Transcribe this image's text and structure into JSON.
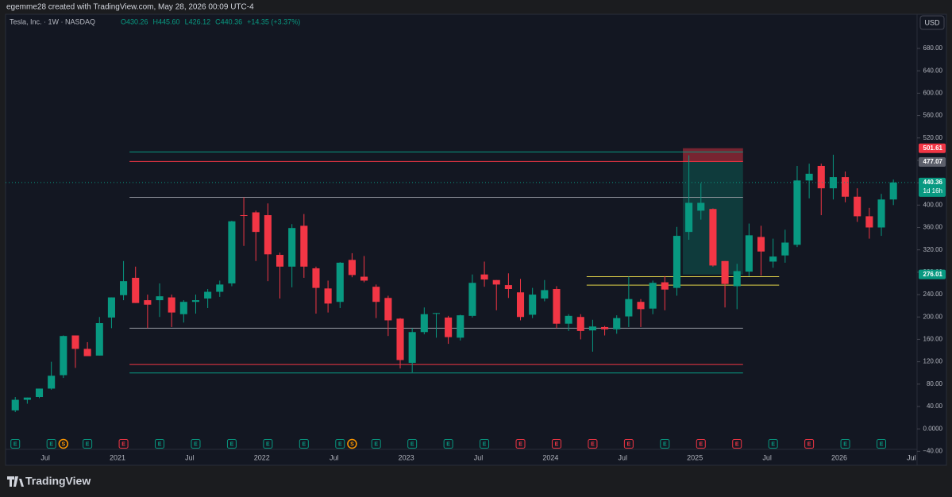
{
  "header": {
    "attribution": "egemme28 created with TradingView.com, May 28, 2026 00:09 UTC-4"
  },
  "legend": {
    "symbol": "Tesla, Inc. · 1W · NASDAQ",
    "ohlc": [
      "O430.26",
      "H445.60",
      "L426.12",
      "C440.36",
      "+14.35 (+3.37%)"
    ]
  },
  "currency": "USD",
  "logo": "TradingView",
  "chart_data": {
    "type": "candlestick",
    "x": [
      "2020-04",
      "2020-05",
      "2020-06",
      "2020-07",
      "2020-08",
      "2020-09",
      "2020-10",
      "2020-11",
      "2020-12",
      "2021-01",
      "2021-02",
      "2021-03",
      "2021-04",
      "2021-05",
      "2021-06",
      "2021-07",
      "2021-08",
      "2021-09",
      "2021-10",
      "2021-11",
      "2021-12",
      "2022-01",
      "2022-02",
      "2022-03",
      "2022-04",
      "2022-05",
      "2022-06",
      "2022-07",
      "2022-08",
      "2022-09",
      "2022-10",
      "2022-11",
      "2022-12",
      "2023-01",
      "2023-02",
      "2023-03",
      "2023-04",
      "2023-05",
      "2023-06",
      "2023-07",
      "2023-08",
      "2023-09",
      "2023-10",
      "2023-11",
      "2023-12",
      "2024-01",
      "2024-02",
      "2024-03",
      "2024-04",
      "2024-05",
      "2024-06",
      "2024-07",
      "2024-08",
      "2024-09",
      "2024-10",
      "2024-11",
      "2024-12",
      "2025-01",
      "2025-02",
      "2025-03",
      "2025-04",
      "2025-05",
      "2025-06",
      "2025-07",
      "2025-08",
      "2025-09",
      "2025-10",
      "2025-11",
      "2025-12",
      "2026-01",
      "2026-02",
      "2026-03",
      "2026-04",
      "2026-05"
    ],
    "open": [
      33,
      52,
      57,
      72,
      96,
      167,
      143,
      131,
      199,
      239,
      270,
      230,
      230,
      235,
      205,
      227,
      233,
      245,
      260,
      382,
      387,
      382,
      311,
      290,
      363,
      287,
      251,
      227,
      302,
      272,
      254,
      234,
      197,
      118,
      173,
      206,
      199,
      163,
      202,
      276,
      266,
      257,
      244,
      204,
      233,
      250,
      188,
      200,
      176,
      182,
      178,
      201,
      227,
      215,
      262,
      252,
      352,
      390,
      393,
      300,
      255,
      281,
      343,
      299,
      310,
      329,
      444,
      470,
      430,
      450,
      415,
      380,
      360,
      410
    ],
    "high": [
      57,
      56,
      72,
      120,
      167,
      167,
      155,
      200,
      235,
      300,
      290,
      240,
      260,
      240,
      230,
      240,
      250,
      265,
      372,
      414,
      390,
      403,
      315,
      366,
      384,
      290,
      265,
      298,
      314,
      309,
      258,
      238,
      198,
      180,
      217,
      207,
      202,
      204,
      276,
      299,
      266,
      278,
      268,
      252,
      266,
      255,
      205,
      205,
      195,
      184,
      203,
      272,
      232,
      265,
      273,
      361,
      489,
      439,
      394,
      300,
      295,
      367,
      363,
      340,
      356,
      470,
      474,
      474,
      490,
      460,
      430,
      395,
      420,
      445.6
    ],
    "low": [
      30,
      45,
      55,
      70,
      91,
      109,
      135,
      131,
      180,
      230,
      225,
      180,
      200,
      182,
      190,
      206,
      216,
      236,
      255,
      327,
      300,
      264,
      233,
      253,
      270,
      206,
      208,
      216,
      271,
      262,
      198,
      166,
      108,
      101,
      169,
      163,
      152,
      158,
      199,
      254,
      212,
      234,
      194,
      198,
      228,
      180,
      175,
      160,
      138,
      167,
      170,
      182,
      182,
      205,
      212,
      238,
      338,
      374,
      290,
      217,
      214,
      273,
      274,
      288,
      297,
      325,
      412,
      382,
      410,
      405,
      370,
      340,
      345,
      400
    ],
    "close": [
      52,
      56,
      72,
      95,
      166,
      143,
      130,
      189,
      235,
      264,
      225,
      222,
      237,
      208,
      227,
      230,
      245,
      258,
      371,
      381,
      352,
      312,
      290,
      359,
      290,
      252,
      224,
      297,
      275,
      265,
      227,
      194,
      123,
      173,
      205,
      207,
      164,
      203,
      261,
      267,
      258,
      250,
      200,
      240,
      248,
      188,
      202,
      175,
      183,
      178,
      198,
      232,
      214,
      261,
      249,
      345,
      404,
      404,
      292,
      259,
      282,
      346,
      317,
      308,
      333,
      444,
      456,
      430,
      450,
      415,
      380,
      360,
      410,
      440.36
    ],
    "up_color": "#089981",
    "down_color": "#f23645",
    "ylim": [
      -65,
      741
    ],
    "yticks": [
      {
        "value": -40,
        "label": "−40.00"
      },
      {
        "value": 0,
        "label": "0.0000"
      },
      {
        "value": 40,
        "label": "40.00"
      },
      {
        "value": 80,
        "label": "80.00"
      },
      {
        "value": 120,
        "label": "120.00"
      },
      {
        "value": 160,
        "label": "160.00"
      },
      {
        "value": 200,
        "label": "200.00"
      },
      {
        "value": 240,
        "label": "240.00"
      },
      {
        "value": 280,
        "label": "280.00"
      },
      {
        "value": 320,
        "label": "320.00"
      },
      {
        "value": 360,
        "label": "360.00"
      },
      {
        "value": 400,
        "label": "400.00"
      },
      {
        "value": 440,
        "label": "440.00"
      },
      {
        "value": 480,
        "label": "480.00"
      },
      {
        "value": 520,
        "label": "520.00"
      },
      {
        "value": 560,
        "label": "560.00"
      },
      {
        "value": 600,
        "label": "600.00"
      },
      {
        "value": 640,
        "label": "640.00"
      },
      {
        "value": 680,
        "label": "680.00"
      }
    ],
    "xticks": [
      {
        "value": "2020-07",
        "label": "Jul"
      },
      {
        "value": "2021-01",
        "label": "2021"
      },
      {
        "value": "2021-07",
        "label": "Jul"
      },
      {
        "value": "2022-01",
        "label": "2022"
      },
      {
        "value": "2022-07",
        "label": "Jul"
      },
      {
        "value": "2023-01",
        "label": "2023"
      },
      {
        "value": "2023-07",
        "label": "Jul"
      },
      {
        "value": "2024-01",
        "label": "2024"
      },
      {
        "value": "2024-07",
        "label": "Jul"
      },
      {
        "value": "2025-01",
        "label": "2025"
      },
      {
        "value": "2025-07",
        "label": "Jul"
      },
      {
        "value": "2026-01",
        "label": "2026"
      },
      {
        "value": "2026-07",
        "label": "Jul"
      }
    ],
    "grid": false,
    "price_labels": [
      {
        "value": 501.61,
        "color": "#f23645"
      },
      {
        "value": 477.07,
        "color": "#5d606b"
      },
      {
        "value": 440.36,
        "color": "#089981",
        "countdown": "1d 16h"
      },
      {
        "value": 276.01,
        "color": "#089981"
      }
    ],
    "levels": [
      {
        "price": 495,
        "color": "#089981",
        "from": "2021-02",
        "to": "2025-05"
      },
      {
        "price": 478,
        "color": "#f23645",
        "from": "2021-02",
        "to": "2025-05"
      },
      {
        "price": 414,
        "color": "#9598a1",
        "from": "2021-02",
        "to": "2025-05"
      },
      {
        "price": 180,
        "color": "#9598a1",
        "from": "2021-02",
        "to": "2025-05"
      },
      {
        "price": 115,
        "color": "#f23645",
        "from": "2021-02",
        "to": "2025-05"
      },
      {
        "price": 100,
        "color": "#089981",
        "from": "2021-02",
        "to": "2025-05"
      },
      {
        "price": 272,
        "color": "#e5d54a",
        "from": "2024-04",
        "to": "2025-08"
      },
      {
        "price": 257,
        "color": "#e5d54a",
        "from": "2024-04",
        "to": "2025-08"
      }
    ],
    "position": {
      "from": "2024-12",
      "to": "2025-04"
    },
    "events": [
      {
        "x": "2020-04",
        "label": "E",
        "color": "#089981"
      },
      {
        "x": "2020-07",
        "label": "E",
        "color": "#089981"
      },
      {
        "x": "2020-08",
        "label": "S",
        "color": "#ff9800"
      },
      {
        "x": "2020-10",
        "label": "E",
        "color": "#089981"
      },
      {
        "x": "2021-01",
        "label": "E",
        "color": "#f23645"
      },
      {
        "x": "2021-04",
        "label": "E",
        "color": "#089981"
      },
      {
        "x": "2021-07",
        "label": "E",
        "color": "#089981"
      },
      {
        "x": "2021-10",
        "label": "E",
        "color": "#089981"
      },
      {
        "x": "2022-01",
        "label": "E",
        "color": "#089981"
      },
      {
        "x": "2022-04",
        "label": "E",
        "color": "#089981"
      },
      {
        "x": "2022-07",
        "label": "E",
        "color": "#089981"
      },
      {
        "x": "2022-08",
        "label": "S",
        "color": "#ff9800"
      },
      {
        "x": "2022-10",
        "label": "E",
        "color": "#089981"
      },
      {
        "x": "2023-01",
        "label": "E",
        "color": "#089981"
      },
      {
        "x": "2023-04",
        "label": "E",
        "color": "#089981"
      },
      {
        "x": "2023-07",
        "label": "E",
        "color": "#089981"
      },
      {
        "x": "2023-10",
        "label": "E",
        "color": "#f23645"
      },
      {
        "x": "2024-01",
        "label": "E",
        "color": "#f23645"
      },
      {
        "x": "2024-04",
        "label": "E",
        "color": "#f23645"
      },
      {
        "x": "2024-07",
        "label": "E",
        "color": "#f23645"
      },
      {
        "x": "2024-10",
        "label": "E",
        "color": "#089981"
      },
      {
        "x": "2025-01",
        "label": "E",
        "color": "#f23645"
      },
      {
        "x": "2025-04",
        "label": "E",
        "color": "#f23645"
      },
      {
        "x": "2025-07",
        "label": "E",
        "color": "#089981"
      },
      {
        "x": "2025-10",
        "label": "E",
        "color": "#f23645"
      },
      {
        "x": "2026-01",
        "label": "E",
        "color": "#089981"
      },
      {
        "x": "2026-04",
        "label": "E",
        "color": "#089981"
      }
    ]
  }
}
